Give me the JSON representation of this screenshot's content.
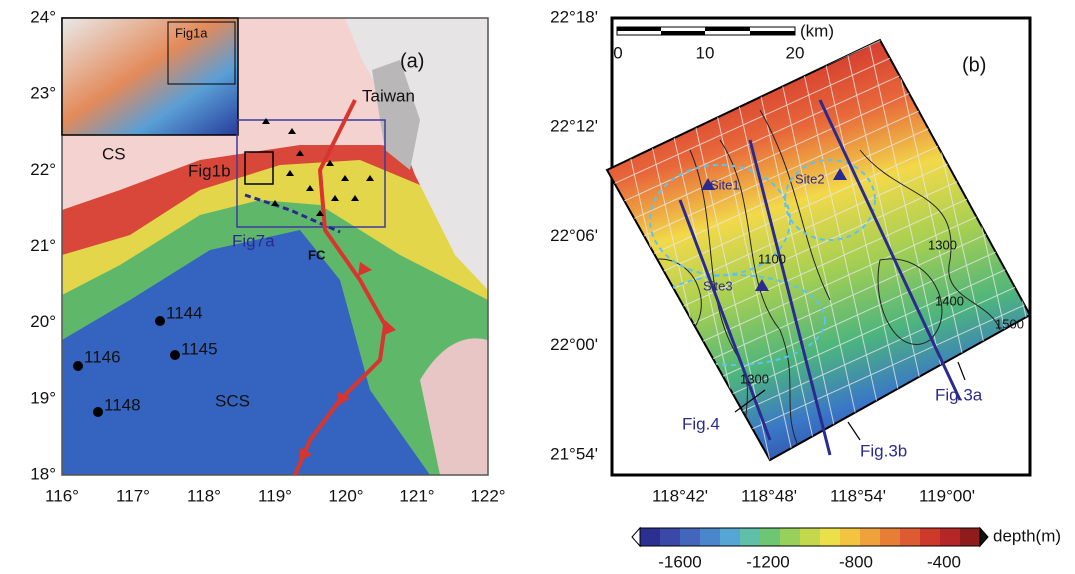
{
  "panel_a": {
    "label": "(a)",
    "yticks": [
      "24°",
      "23°",
      "22°",
      "21°",
      "20°",
      "19°",
      "18°"
    ],
    "xticks": [
      "116°",
      "117°",
      "118°",
      "119°",
      "120°",
      "121°",
      "122°"
    ],
    "places": {
      "taiwan": "Taiwan",
      "cs": "CS",
      "scs": "SCS",
      "fc": "FC"
    },
    "boxes": {
      "fig1a": "Fig1a",
      "fig1b": "Fig1b",
      "fig7a": "Fig7a"
    },
    "sites": [
      "1144",
      "1145",
      "1146",
      "1148"
    ]
  },
  "panel_b": {
    "label": "(b)",
    "yticks": [
      "22°18'",
      "22°12'",
      "22°06'",
      "22°00'",
      "21°54'"
    ],
    "xticks": [
      "118°42'",
      "118°48'",
      "118°54'",
      "119°00'"
    ],
    "scale": [
      "0",
      "10",
      "20",
      "(km)"
    ],
    "sites": [
      "Site1",
      "Site2",
      "Site3"
    ],
    "lines": [
      "Fig.4",
      "Fig.3b",
      "Fig.3a"
    ],
    "contours": [
      "1300",
      "1400",
      "1500",
      "1100",
      "1300"
    ]
  },
  "colorbar": {
    "ticks": [
      "-1600",
      "-1200",
      "-800",
      "-400"
    ],
    "title": "depth(m)"
  }
}
